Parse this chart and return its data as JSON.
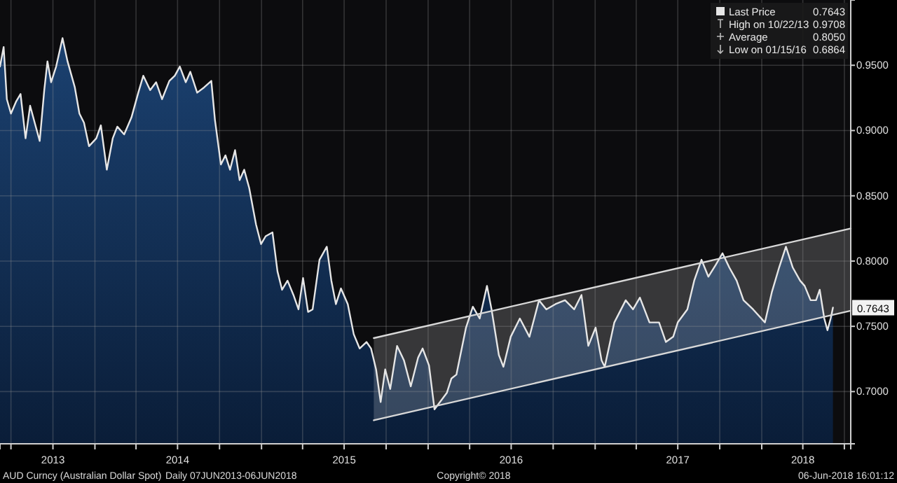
{
  "chart_data": {
    "type": "area",
    "legend": "top right",
    "grid": true,
    "marker": "none",
    "line_style": "solid",
    "xlim": [
      "2013-06-07",
      "2018-07-15"
    ],
    "ylim": [
      0.66,
      1.0
    ],
    "yticks": [
      {
        "value": 0.7,
        "label": "0.7000"
      },
      {
        "value": 0.75,
        "label": "0.7500"
      },
      {
        "value": 0.8,
        "label": "0.8000"
      },
      {
        "value": 0.85,
        "label": "0.8500"
      },
      {
        "value": 0.9,
        "label": "0.9000"
      },
      {
        "value": 0.95,
        "label": "0.9500"
      }
    ],
    "xticks": [
      {
        "value": "2013-07-01",
        "label": null
      },
      {
        "value": "2013-10-01",
        "label": "2013"
      },
      {
        "value": "2014-01-01",
        "label": null
      },
      {
        "value": "2014-04-01",
        "label": null
      },
      {
        "value": "2014-07-01",
        "label": "2014"
      },
      {
        "value": "2014-10-01",
        "label": null
      },
      {
        "value": "2015-01-01",
        "label": null
      },
      {
        "value": "2015-04-01",
        "label": null
      },
      {
        "value": "2015-07-01",
        "label": "2015"
      },
      {
        "value": "2015-10-01",
        "label": null
      },
      {
        "value": "2016-01-01",
        "label": null
      },
      {
        "value": "2016-04-01",
        "label": null
      },
      {
        "value": "2016-07-01",
        "label": "2016"
      },
      {
        "value": "2016-10-01",
        "label": null
      },
      {
        "value": "2017-01-01",
        "label": null
      },
      {
        "value": "2017-04-01",
        "label": null
      },
      {
        "value": "2017-07-01",
        "label": "2017"
      },
      {
        "value": "2017-10-01",
        "label": null
      },
      {
        "value": "2018-01-01",
        "label": null
      },
      {
        "value": "2018-04-01",
        "label": "2018"
      },
      {
        "value": "2018-07-01",
        "label": null
      }
    ],
    "series": [
      {
        "name": "Last Price",
        "color": "#e6e6e6",
        "x": [
          "2013-06-07",
          "2013-06-15",
          "2013-06-22",
          "2013-07-01",
          "2013-07-12",
          "2013-07-22",
          "2013-08-02",
          "2013-08-12",
          "2013-08-22",
          "2013-09-02",
          "2013-09-12",
          "2013-09-19",
          "2013-09-27",
          "2013-10-08",
          "2013-10-22",
          "2013-11-02",
          "2013-11-18",
          "2013-11-28",
          "2013-12-08",
          "2013-12-19",
          "2014-01-04",
          "2014-01-14",
          "2014-01-27",
          "2014-02-09",
          "2014-02-19",
          "2014-03-06",
          "2014-03-22",
          "2014-04-06",
          "2014-04-17",
          "2014-05-02",
          "2014-05-15",
          "2014-05-28",
          "2014-06-13",
          "2014-06-25",
          "2014-07-06",
          "2014-07-19",
          "2014-07-29",
          "2014-08-13",
          "2014-08-28",
          "2014-09-13",
          "2014-09-21",
          "2014-10-04",
          "2014-10-14",
          "2014-10-24",
          "2014-11-04",
          "2014-11-14",
          "2014-11-24",
          "2014-12-05",
          "2014-12-20",
          "2014-12-31",
          "2015-01-10",
          "2015-01-25",
          "2015-02-05",
          "2015-02-15",
          "2015-02-27",
          "2015-03-12",
          "2015-03-23",
          "2015-04-02",
          "2015-04-13",
          "2015-04-23",
          "2015-05-08",
          "2015-05-24",
          "2015-06-03",
          "2015-06-13",
          "2015-06-24",
          "2015-07-09",
          "2015-07-22",
          "2015-08-04",
          "2015-08-19",
          "2015-08-29",
          "2015-09-09",
          "2015-09-19",
          "2015-09-29",
          "2015-10-10",
          "2015-10-25",
          "2015-11-09",
          "2015-11-24",
          "2015-12-10",
          "2015-12-20",
          "2016-01-03",
          "2016-01-15",
          "2016-02-11",
          "2016-02-21",
          "2016-03-03",
          "2016-03-24",
          "2016-04-08",
          "2016-04-23",
          "2016-05-09",
          "2016-05-19",
          "2016-06-04",
          "2016-06-14",
          "2016-06-30",
          "2016-07-20",
          "2016-08-10",
          "2016-08-31",
          "2016-09-16",
          "2016-10-06",
          "2016-10-27",
          "2016-11-16",
          "2016-12-02",
          "2016-12-17",
          "2017-01-02",
          "2017-01-15",
          "2017-01-22",
          "2017-02-12",
          "2017-03-09",
          "2017-03-25",
          "2017-04-09",
          "2017-04-30",
          "2017-05-21",
          "2017-06-05",
          "2017-06-21",
          "2017-07-01",
          "2017-07-22",
          "2017-08-06",
          "2017-08-22",
          "2017-09-06",
          "2017-09-22",
          "2017-10-07",
          "2017-10-22",
          "2017-11-07",
          "2017-11-22",
          "2017-12-13",
          "2018-01-08",
          "2018-01-23",
          "2018-02-08",
          "2018-02-23",
          "2018-03-10",
          "2018-03-26",
          "2018-04-05",
          "2018-04-18",
          "2018-04-30",
          "2018-05-08",
          "2018-05-18",
          "2018-05-25",
          "2018-06-01",
          "2018-06-06"
        ],
        "values": [
          0.949,
          0.964,
          0.924,
          0.913,
          0.922,
          0.928,
          0.894,
          0.919,
          0.906,
          0.892,
          0.931,
          0.953,
          0.937,
          0.949,
          0.9708,
          0.953,
          0.933,
          0.913,
          0.906,
          0.888,
          0.894,
          0.904,
          0.87,
          0.894,
          0.903,
          0.897,
          0.91,
          0.929,
          0.942,
          0.931,
          0.937,
          0.924,
          0.938,
          0.942,
          0.949,
          0.937,
          0.945,
          0.929,
          0.933,
          0.938,
          0.908,
          0.874,
          0.881,
          0.87,
          0.885,
          0.862,
          0.87,
          0.856,
          0.828,
          0.813,
          0.819,
          0.822,
          0.792,
          0.778,
          0.785,
          0.774,
          0.763,
          0.787,
          0.761,
          0.763,
          0.801,
          0.811,
          0.785,
          0.767,
          0.779,
          0.767,
          0.744,
          0.733,
          0.738,
          0.733,
          0.717,
          0.692,
          0.717,
          0.702,
          0.735,
          0.724,
          0.704,
          0.726,
          0.733,
          0.72,
          0.6864,
          0.699,
          0.71,
          0.713,
          0.749,
          0.765,
          0.756,
          0.781,
          0.763,
          0.728,
          0.719,
          0.742,
          0.756,
          0.742,
          0.77,
          0.763,
          0.767,
          0.77,
          0.763,
          0.774,
          0.735,
          0.749,
          0.724,
          0.719,
          0.753,
          0.77,
          0.763,
          0.772,
          0.753,
          0.753,
          0.738,
          0.742,
          0.753,
          0.763,
          0.785,
          0.801,
          0.788,
          0.797,
          0.806,
          0.795,
          0.785,
          0.77,
          0.763,
          0.753,
          0.776,
          0.795,
          0.811,
          0.795,
          0.785,
          0.781,
          0.77,
          0.77,
          0.778,
          0.756,
          0.747,
          0.756,
          0.7643
        ]
      },
      {
        "type": "line",
        "color": "#d8d8d8",
        "x": [
          "2015-09-04",
          "2018-07-15"
        ],
        "values": [
          0.741,
          0.825
        ],
        "lower": [
          0.678,
          0.762
        ],
        "upper": [
          0.741,
          0.825
        ]
      },
      {
        "type": "line",
        "color": "#d8d8d8",
        "x": [
          "2015-09-04",
          "2018-07-15"
        ],
        "values": [
          0.678,
          0.762
        ]
      }
    ],
    "annotations": [
      "0.7643",
      "High on 10/22/13",
      "0.9708",
      "Average",
      "0.8050",
      "Low on 01/15/16",
      "0.6864",
      {
        "text": "0.7643",
        "x": "2018-06-06",
        "y": 0.7643
      },
      "AUD Curncy (Australian Dollar Spot)",
      "Daily 07JUN2013-06JUN2018",
      "Copyright© 2018",
      "06-Jun-2018 16:01:12"
    ]
  }
}
